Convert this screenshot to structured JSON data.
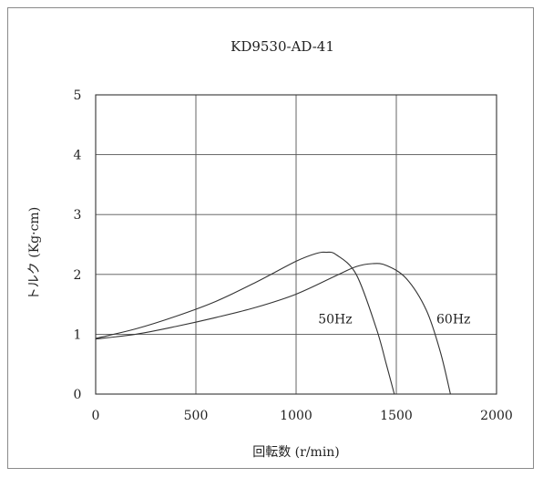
{
  "chart_data": {
    "type": "line",
    "title": "KD9530-AD-41",
    "xlabel": "回転数 (r/min)",
    "ylabel": "トルク (Kg·cm)",
    "xlim": [
      0,
      2000
    ],
    "ylim": [
      0,
      5
    ],
    "xticks": [
      "0",
      "500",
      "1000",
      "1500",
      "2000"
    ],
    "yticks": [
      "0",
      "1",
      "2",
      "3",
      "4",
      "5"
    ],
    "grid": true,
    "series": [
      {
        "name": "50Hz",
        "x": [
          0,
          200,
          400,
          600,
          800,
          1000,
          1100,
          1150,
          1200,
          1300,
          1400,
          1450,
          1490
        ],
        "y": [
          0.93,
          1.09,
          1.3,
          1.55,
          1.87,
          2.22,
          2.35,
          2.37,
          2.33,
          2.0,
          1.1,
          0.5,
          0.0
        ]
      },
      {
        "name": "60Hz",
        "x": [
          0,
          200,
          400,
          600,
          800,
          1000,
          1200,
          1300,
          1380,
          1450,
          1550,
          1650,
          1720,
          1770
        ],
        "y": [
          0.92,
          1.0,
          1.13,
          1.28,
          1.45,
          1.67,
          1.98,
          2.13,
          2.18,
          2.15,
          1.93,
          1.4,
          0.7,
          0.0
        ]
      }
    ]
  }
}
